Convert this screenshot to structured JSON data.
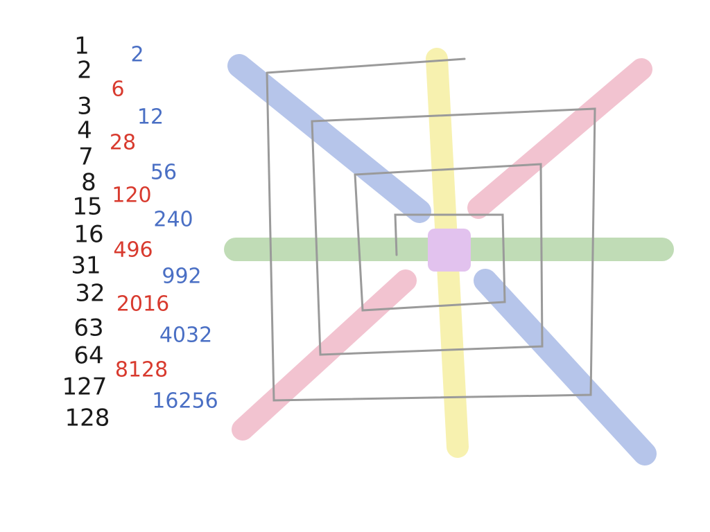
{
  "black_numbers": [
    1,
    2,
    3,
    4,
    7,
    8,
    15,
    16,
    31,
    32,
    63,
    64,
    127,
    128
  ],
  "red_numbers": [
    6,
    28,
    120,
    496,
    2016,
    8128
  ],
  "blue_numbers": [
    2,
    12,
    56,
    240,
    992,
    4032,
    16256
  ]
}
